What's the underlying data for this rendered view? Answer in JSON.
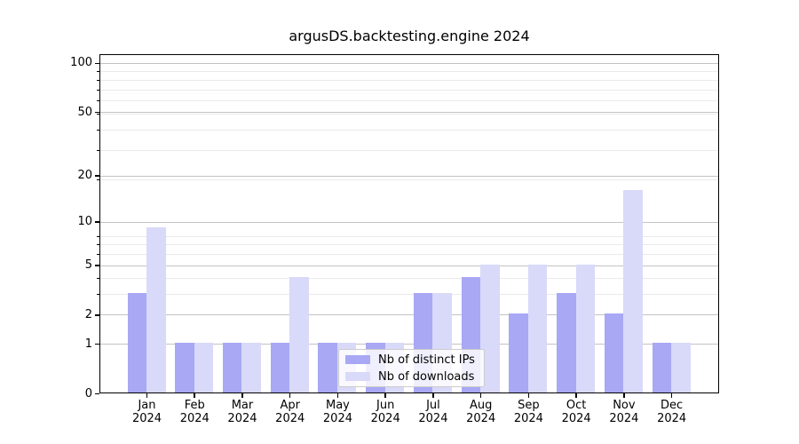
{
  "title": "argusDS.backtesting.engine 2024",
  "colors": {
    "ips": "#a8a8f5",
    "downloads": "#d9d9f9",
    "grid_major": "#c3c3c3",
    "grid_minor": "#eaeaea",
    "axis": "#000000",
    "legend_border": "#cccccc"
  },
  "legend": {
    "items": [
      {
        "label": "Nb of distinct IPs",
        "color_key": "ips"
      },
      {
        "label": "Nb of downloads",
        "color_key": "downloads"
      }
    ]
  },
  "chart_data": {
    "type": "bar",
    "title": "argusDS.backtesting.engine 2024",
    "categories": [
      "Jan 2024",
      "Feb 2024",
      "Mar 2024",
      "Apr 2024",
      "May 2024",
      "Jun 2024",
      "Jul 2024",
      "Aug 2024",
      "Sep 2024",
      "Oct 2024",
      "Nov 2024",
      "Dec 2024"
    ],
    "series": [
      {
        "name": "Nb of distinct IPs",
        "color_key": "ips",
        "values": [
          3,
          1,
          1,
          1,
          1,
          1,
          3,
          4,
          2,
          3,
          2,
          1
        ]
      },
      {
        "name": "Nb of downloads",
        "color_key": "downloads",
        "values": [
          9,
          1,
          1,
          4,
          1,
          1,
          3,
          5,
          5,
          5,
          16,
          1
        ]
      }
    ],
    "xlabel": "",
    "ylabel": "",
    "yscale": "log1p",
    "ylim": [
      0,
      114
    ],
    "yticks": [
      0,
      1,
      2,
      5,
      10,
      20,
      50,
      100
    ],
    "grid": "both",
    "legend_position": "inside lower-center"
  }
}
